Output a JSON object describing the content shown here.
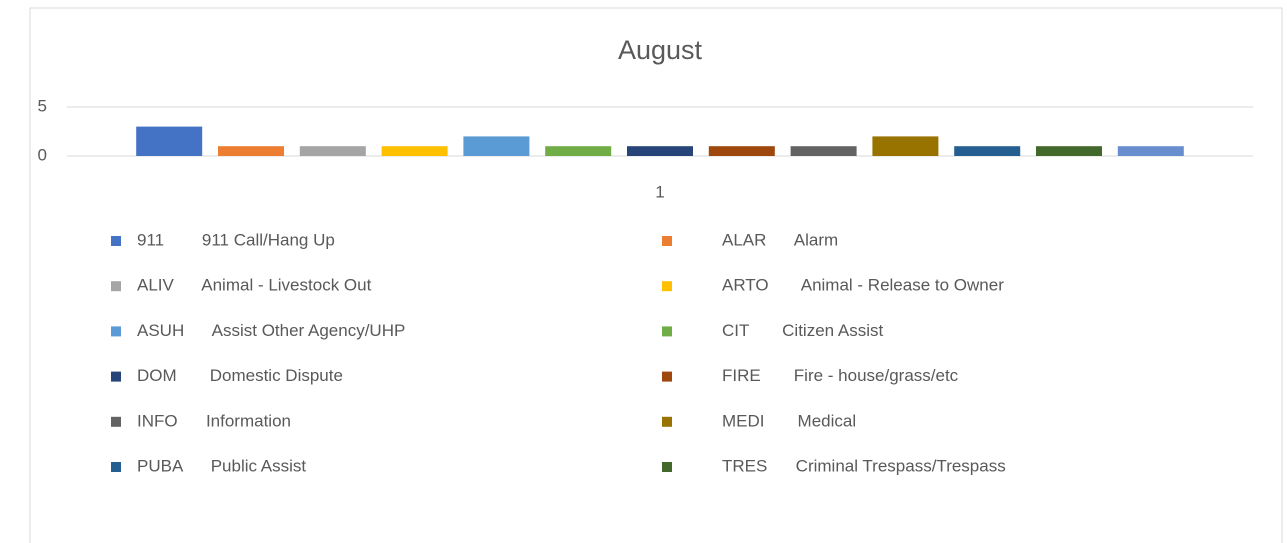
{
  "chart_data": {
    "type": "bar",
    "title": "August",
    "categories": [
      "1"
    ],
    "ylim": [
      0,
      5
    ],
    "yticks": [
      0,
      5
    ],
    "grid": true,
    "series": [
      {
        "name": "911        911 Call/Hang Up",
        "color": "#4472c4",
        "values": [
          3
        ]
      },
      {
        "name": "ALAR      Alarm",
        "color": "#ed7d31",
        "values": [
          1
        ]
      },
      {
        "name": "ALIV      Animal - Livestock Out",
        "color": "#a5a5a5",
        "values": [
          1
        ]
      },
      {
        "name": "ARTO       Animal - Release to Owner",
        "color": "#ffc000",
        "values": [
          1
        ]
      },
      {
        "name": "ASUH      Assist Other Agency/UHP",
        "color": "#5b9bd5",
        "values": [
          2
        ]
      },
      {
        "name": "CIT       Citizen Assist",
        "color": "#70ad47",
        "values": [
          1
        ]
      },
      {
        "name": "DOM       Domestic Dispute",
        "color": "#264478",
        "values": [
          1
        ]
      },
      {
        "name": "FIRE       Fire - house/grass/etc",
        "color": "#9e480e",
        "values": [
          1
        ]
      },
      {
        "name": "INFO      Information",
        "color": "#636363",
        "values": [
          1
        ]
      },
      {
        "name": "MEDI       Medical",
        "color": "#997300",
        "values": [
          2
        ]
      },
      {
        "name": "PUBA      Public Assist",
        "color": "#255e91",
        "values": [
          1
        ]
      },
      {
        "name": "TRES      Criminal Trespass/Trespass",
        "color": "#43682b",
        "values": [
          1
        ]
      },
      {
        "name": null,
        "color": "#698ed0",
        "values": [
          1
        ]
      }
    ]
  }
}
